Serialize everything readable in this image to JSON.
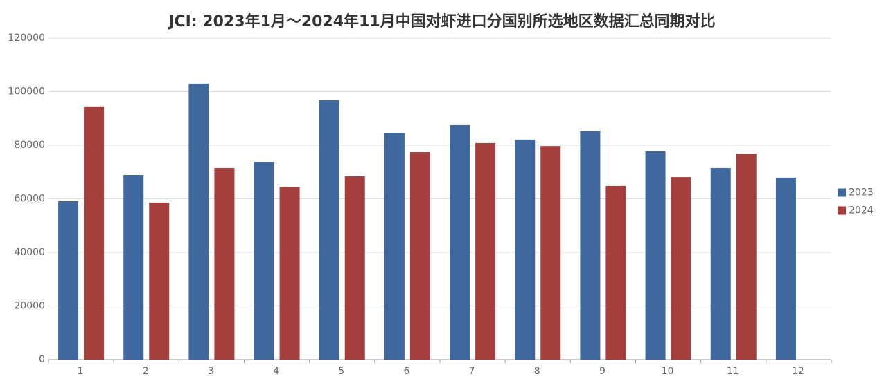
{
  "chart_data": {
    "type": "bar",
    "title": "JCI: 2023年1月～2024年11月中国对虾进口分国别所选地区数据汇总同期对比",
    "categories": [
      "1",
      "2",
      "3",
      "4",
      "5",
      "6",
      "7",
      "8",
      "9",
      "10",
      "11",
      "12"
    ],
    "series": [
      {
        "name": "2023",
        "color": "#3f699e",
        "values": [
          59100,
          68900,
          103000,
          73800,
          96800,
          84600,
          87500,
          82100,
          85200,
          77700,
          71500,
          67900
        ]
      },
      {
        "name": "2024",
        "color": "#a53f3e",
        "values": [
          94500,
          58600,
          71500,
          64500,
          68400,
          77400,
          80800,
          79700,
          64800,
          68100,
          76900,
          null
        ]
      }
    ],
    "ylim": [
      0,
      120000
    ],
    "yticks": [
      0,
      20000,
      40000,
      60000,
      80000,
      100000,
      120000
    ],
    "grid": true,
    "legend": "right"
  }
}
